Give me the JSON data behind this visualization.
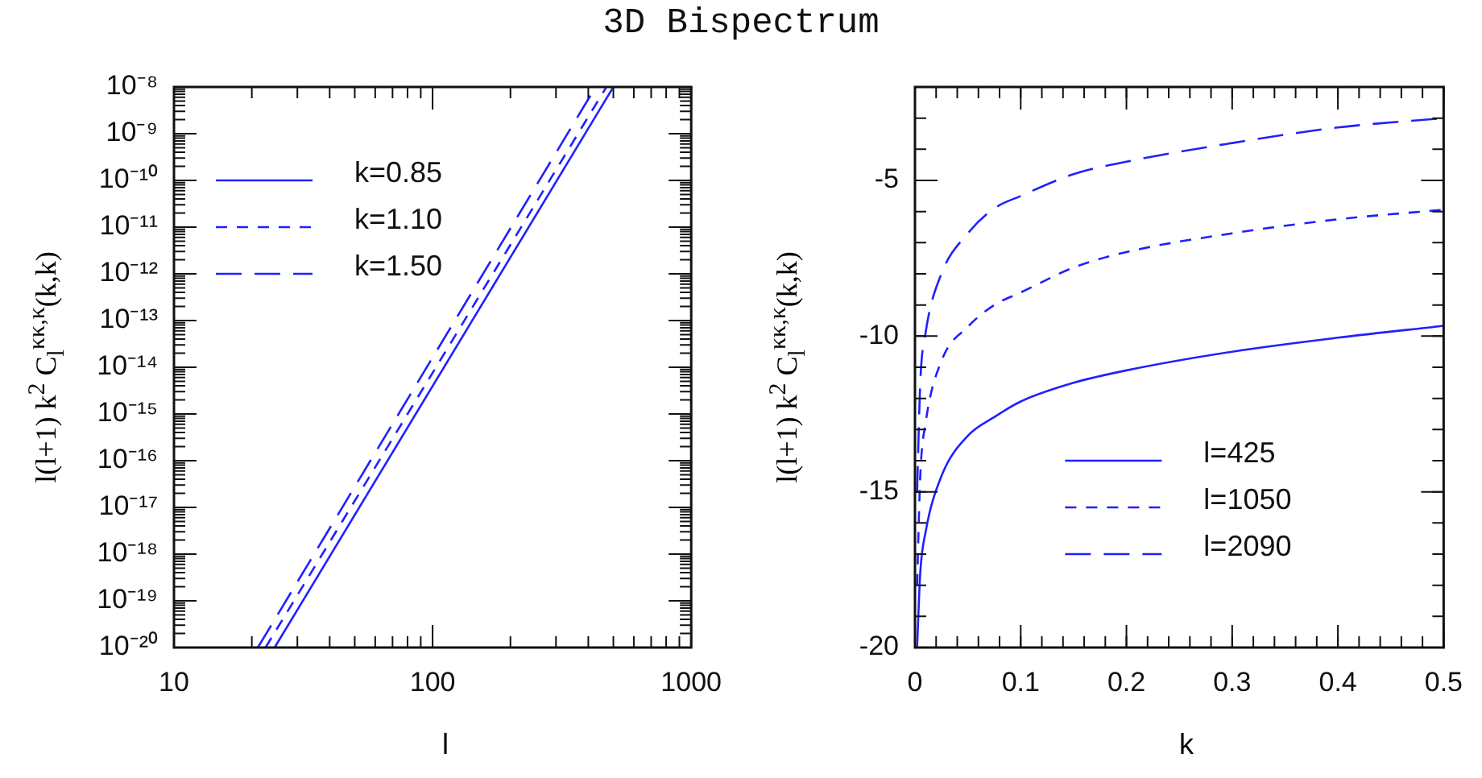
{
  "chart_data": [
    {
      "type": "line",
      "title": "3D Bispectrum",
      "xlabel": "l",
      "ylabel": "l(l+1) k$^{2}$ C$_{l}$$^{κκ,κ}$(k,k)",
      "log": "xy",
      "marker": "none",
      "legend": "top left",
      "grid": false,
      "xlim": [
        10,
        1000
      ],
      "xticks": [
        10,
        100,
        1000
      ],
      "ylim": [
        1e-20,
        1e-08
      ],
      "yticks": [
        {
          "value": 1e-20,
          "label": "10⁻²⁰"
        },
        {
          "value": 1e-19,
          "label": "10⁻¹⁹"
        },
        {
          "value": 1e-18,
          "label": "10⁻¹⁸"
        },
        {
          "value": 1e-17,
          "label": "10⁻¹⁷"
        },
        {
          "value": 1e-16,
          "label": "10⁻¹⁶"
        },
        {
          "value": 1e-15,
          "label": "10⁻¹⁵"
        },
        {
          "value": 1e-14,
          "label": "10⁻¹⁴"
        },
        {
          "value": 1e-13,
          "label": "10⁻¹³"
        },
        {
          "value": 1e-12,
          "label": "10⁻¹²"
        },
        {
          "value": 1e-11,
          "label": "10⁻¹¹"
        },
        {
          "value": 1e-10,
          "label": "10⁻¹⁰"
        },
        {
          "value": 1e-09,
          "label": "10⁻⁹"
        },
        {
          "value": 1e-08,
          "label": "10⁻⁸"
        }
      ],
      "series": [
        {
          "name": "k=0.85",
          "color": "#2020ff",
          "line_style": "solid",
          "x": [
            24.5,
            500
          ],
          "values": [
            1e-20,
            1e-08
          ]
        },
        {
          "name": "k=1.10",
          "color": "#2020ff",
          "line_style": "dashed",
          "x": [
            22.6,
            470
          ],
          "values": [
            1e-20,
            1e-08
          ]
        },
        {
          "name": "k=1.50",
          "color": "#2020ff",
          "line_style": "dashed",
          "x": [
            21.1,
            427
          ],
          "values": [
            1e-20,
            1e-08
          ]
        }
      ]
    },
    {
      "type": "line",
      "xlabel": "k",
      "ylabel": "l(l+1) k$^{2}$ C$_{l}$$^{κκ,κ}$(k,k)",
      "marker": "none",
      "legend": "bottom right",
      "grid": false,
      "xlim": [
        0,
        0.5
      ],
      "xticks": [
        0,
        0.1,
        0.2,
        0.3,
        0.4,
        0.5
      ],
      "ylim": [
        -20,
        -2
      ],
      "yticks": [
        -20,
        -15,
        -10,
        -5
      ],
      "x": [
        0.002,
        0.005,
        0.01,
        0.025,
        0.05,
        0.075,
        0.1,
        0.15,
        0.2,
        0.3,
        0.4,
        0.5
      ],
      "series": [
        {
          "name": "l=425",
          "color": "#2020ff",
          "line_style": "solid",
          "values": [
            -20,
            -17.6,
            -16.3,
            -14.5,
            -13.2,
            -12.6,
            -12.1,
            -11.5,
            -11.1,
            -10.5,
            -10.05,
            -9.67
          ]
        },
        {
          "name": "l=1050",
          "color": "#2020ff",
          "line_style": "dashed",
          "values": [
            -18,
            -14.5,
            -12.8,
            -10.8,
            -9.7,
            -9.0,
            -8.6,
            -7.8,
            -7.3,
            -6.7,
            -6.25,
            -5.94
          ]
        },
        {
          "name": "l=2090",
          "color": "#2020ff",
          "line_style": "dashed",
          "values": [
            -15,
            -11.5,
            -9.9,
            -8.0,
            -6.7,
            -5.9,
            -5.5,
            -4.8,
            -4.4,
            -3.8,
            -3.3,
            -3.0
          ]
        }
      ]
    }
  ]
}
